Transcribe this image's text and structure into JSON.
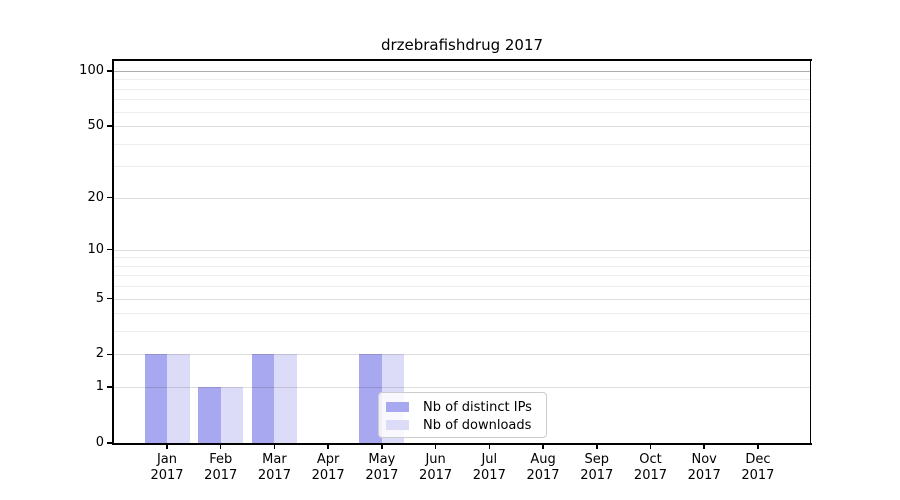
{
  "chart_data": {
    "type": "bar",
    "title": "drzebrafishdrug 2017",
    "categories": [
      "Jan",
      "Feb",
      "Mar",
      "Apr",
      "May",
      "Jun",
      "Jul",
      "Aug",
      "Sep",
      "Oct",
      "Nov",
      "Dec"
    ],
    "year_label": "2017",
    "series": [
      {
        "name": "Nb of distinct IPs",
        "color": "#a8a8f0",
        "values": [
          2,
          1,
          2,
          0,
          2,
          0,
          0,
          0,
          0,
          0,
          0,
          0
        ]
      },
      {
        "name": "Nb of downloads",
        "color": "#dcdcf8",
        "values": [
          2,
          1,
          2,
          0,
          2,
          0,
          0,
          0,
          0,
          0,
          0,
          0
        ]
      }
    ],
    "yscale": "log1p",
    "ylim": [
      0,
      115
    ],
    "yticks": [
      0,
      1,
      2,
      5,
      10,
      20,
      50,
      100
    ],
    "minor_gridlines": [
      3,
      4,
      6,
      7,
      8,
      9,
      30,
      40,
      60,
      70,
      80,
      90
    ],
    "grid": true,
    "legend_position": "lower-center-inside"
  },
  "colors": {
    "background": "#ffffff",
    "axis": "#000000",
    "grid_minor": "rgba(0,0,0,0.07)",
    "grid_major": "rgba(0,0,0,0.13)",
    "grid_top": "rgba(0,0,0,0.32)",
    "legend_border": "#cccccc"
  }
}
